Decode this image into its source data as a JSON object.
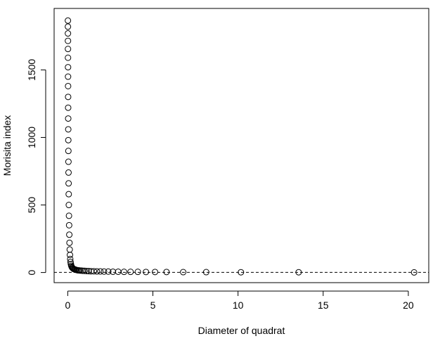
{
  "chart_data": {
    "type": "scatter",
    "title": "",
    "xlabel": "Diameter of quadrat",
    "ylabel": "Morisita index",
    "xlim": [
      -0.8,
      21.2
    ],
    "ylim": [
      -75,
      1955
    ],
    "xticks": [
      0,
      5,
      10,
      15,
      20
    ],
    "yticks": [
      0,
      500,
      1000,
      1500
    ],
    "xtick_labels": [
      "0",
      "5",
      "10",
      "15",
      "20"
    ],
    "ytick_labels": [
      "0",
      "500",
      "1000",
      "1500"
    ],
    "grid": false,
    "legend": "none",
    "reference_line": {
      "y": 1,
      "style": "dashed"
    },
    "marker": "open-circle",
    "series": [
      {
        "x": [
          0.01,
          0.011,
          0.012,
          0.013,
          0.014,
          0.015,
          0.017,
          0.018,
          0.02,
          0.022,
          0.024,
          0.027,
          0.03,
          0.033,
          0.037,
          0.041,
          0.046,
          0.051,
          0.057,
          0.064,
          0.072,
          0.081,
          0.091,
          0.103,
          0.116,
          0.13,
          0.146,
          0.164,
          0.185,
          0.208,
          0.234,
          0.262,
          0.293,
          0.328,
          0.366,
          0.409,
          0.457,
          0.51,
          0.57,
          0.637,
          0.711,
          0.794,
          0.886,
          0.989,
          1.104,
          1.232,
          1.375,
          1.535,
          1.712,
          1.911,
          2.132,
          2.38,
          2.654,
          2.962,
          3.306,
          3.689,
          4.116,
          4.593,
          5.125,
          5.8,
          6.78,
          8.13,
          10.17,
          13.56,
          20.34
        ],
        "y": [
          1865,
          1820,
          1770,
          1715,
          1655,
          1590,
          1520,
          1450,
          1380,
          1300,
          1220,
          1140,
          1060,
          980,
          900,
          820,
          740,
          660,
          580,
          500,
          420,
          350,
          280,
          220,
          170,
          130,
          100,
          78,
          62,
          50,
          42,
          36,
          32,
          28,
          25,
          23,
          21,
          19,
          17,
          16,
          15,
          14,
          13,
          12,
          11,
          10,
          9,
          9,
          8,
          8,
          7,
          7,
          6,
          6,
          5,
          5,
          5,
          4,
          4,
          4,
          3,
          3,
          2,
          2,
          1
        ]
      }
    ]
  }
}
